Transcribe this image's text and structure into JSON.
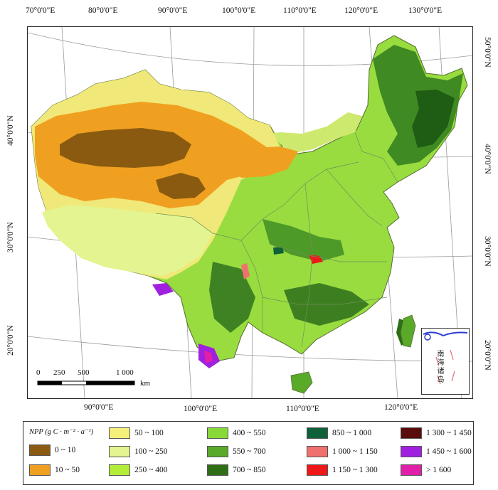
{
  "map": {
    "top_lon_labels": [
      "70°0'0\"E",
      "80°0'0\"E",
      "90°0'0\"E",
      "100°0'0\"E",
      "110°0'0\"E",
      "120°0'0\"E",
      "130°0'0\"E"
    ],
    "bottom_lon_labels": [
      "90°0'0\"E",
      "100°0'0\"E",
      "110°0'0\"E",
      "120°0'0\"E"
    ],
    "left_lat_labels": [
      "40°0'0\"N",
      "30°0'0\"N",
      "20°0'0\"N"
    ],
    "right_lat_labels": [
      "50°0'0\"N",
      "40°0'0\"N",
      "30°0'0\"N",
      "20°0'0\"N"
    ],
    "scale_bar": {
      "ticks": [
        "0",
        "250",
        "500",
        "1 000"
      ],
      "unit": "km"
    },
    "inset_label": "南海诸岛"
  },
  "legend": {
    "title": "NPP (g C · m⁻² · a⁻¹)",
    "classes": [
      {
        "label": "0 ~ 10",
        "color": "#8a5a10"
      },
      {
        "label": "10 ~ 50",
        "color": "#f0a020"
      },
      {
        "label": "50 ~ 100",
        "color": "#f4f07a"
      },
      {
        "label": "100 ~ 250",
        "color": "#e4f490"
      },
      {
        "label": "250 ~ 400",
        "color": "#b4ec3a"
      },
      {
        "label": "400 ~ 550",
        "color": "#88d838"
      },
      {
        "label": "550 ~ 700",
        "color": "#5aaa2a"
      },
      {
        "label": "700 ~ 850",
        "color": "#2e6e16"
      },
      {
        "label": "850 ~ 1 000",
        "color": "#0e6038"
      },
      {
        "label": "1 000 ~ 1 150",
        "color": "#f07070"
      },
      {
        "label": "1 150 ~ 1 300",
        "color": "#ee1818"
      },
      {
        "label": "1 300 ~ 1 450",
        "color": "#5a0c0c"
      },
      {
        "label": "1 450 ~ 1 600",
        "color": "#a020e0"
      },
      {
        "label": "> 1 600",
        "color": "#e020a8"
      }
    ]
  }
}
